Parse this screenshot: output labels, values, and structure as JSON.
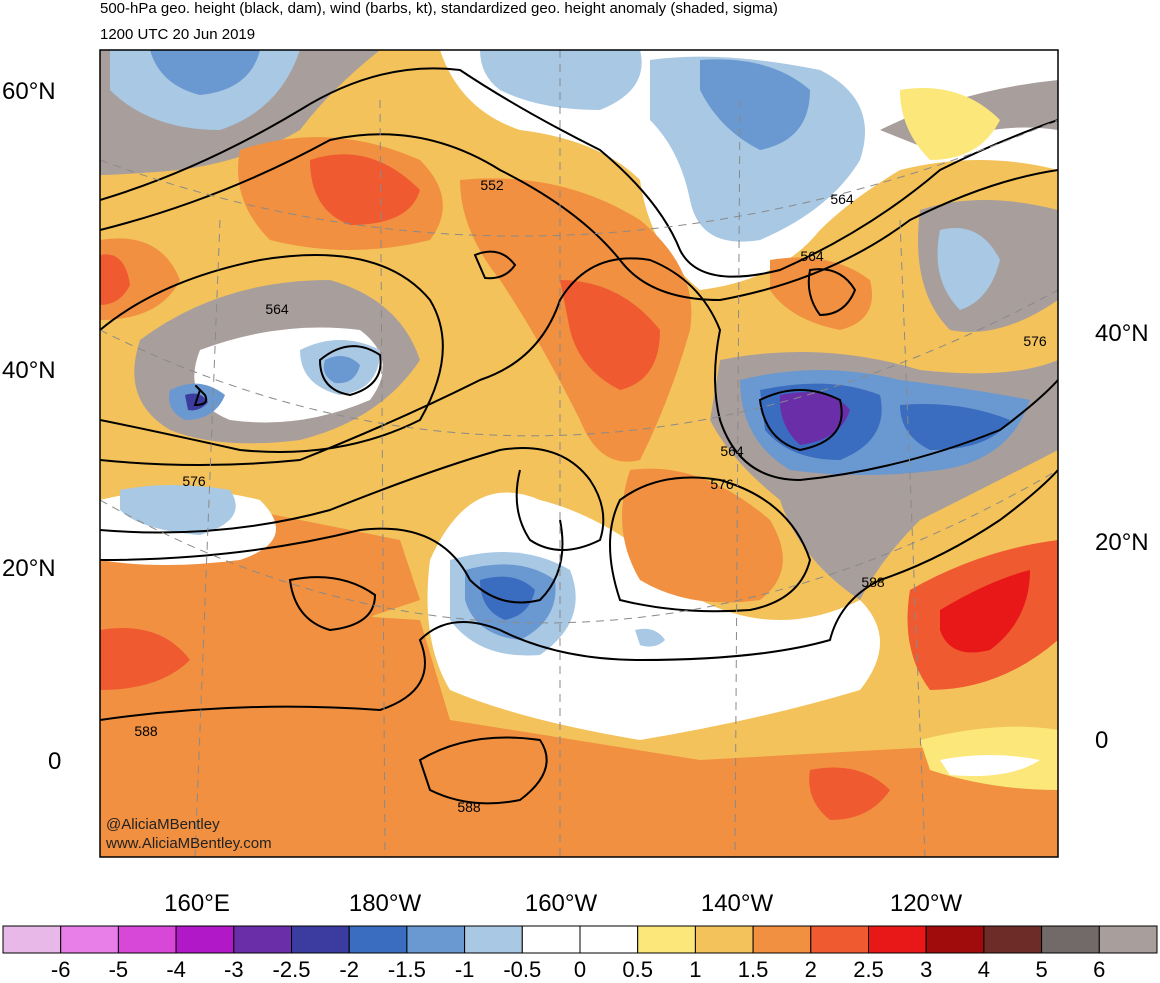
{
  "title_line1": "500-hPa geo. height (black, dam), wind (barbs, kt), standardized geo. height anomaly (shaded, sigma)",
  "title_line2": "1200 UTC 20 Jun 2019",
  "credit_handle": "@AliciaMBentley",
  "credit_site": "www.AliciaMBentley.com",
  "chart_data": {
    "type": "heatmap",
    "title": "500-hPa geo. height (black, dam), wind (barbs, kt), standardized geo. height anomaly (shaded, sigma)",
    "subtitle": "1200 UTC 20 Jun 2019",
    "lat_labels_left": [
      {
        "value": 60,
        "text": "60°N"
      },
      {
        "value": 40,
        "text": "40°N"
      },
      {
        "value": 20,
        "text": "20°N"
      },
      {
        "value": 0,
        "text": "0"
      }
    ],
    "lat_labels_right": [
      {
        "value": 40,
        "text": "40°N"
      },
      {
        "value": 20,
        "text": "20°N"
      },
      {
        "value": 0,
        "text": "0"
      }
    ],
    "lon_labels": [
      "160°E",
      "180°W",
      "160°W",
      "140°W",
      "120°W"
    ],
    "height_contour_labels_dam": [
      564,
      552,
      564,
      564,
      576,
      576,
      564,
      576,
      588,
      588,
      588
    ],
    "colorbar": {
      "tick_labels": [
        "-6",
        "-5",
        "-4",
        "-3",
        "-2.5",
        "-2",
        "-1.5",
        "-1",
        "-0.5",
        "0",
        "0.5",
        "1",
        "1.5",
        "2",
        "2.5",
        "3",
        "4",
        "5",
        "6"
      ],
      "colors": [
        "#e8b8e8",
        "#e87ee8",
        "#d848d8",
        "#b018c8",
        "#6a2fa8",
        "#3c3ca0",
        "#3a6cc0",
        "#6a98d0",
        "#a8c8e4",
        "#ffffff",
        "#ffffff",
        "#fce87a",
        "#f4c25a",
        "#f09040",
        "#f05a30",
        "#e81818",
        "#a00c0c",
        "#6e2c28",
        "#726a68",
        "#a89e9c"
      ]
    }
  }
}
